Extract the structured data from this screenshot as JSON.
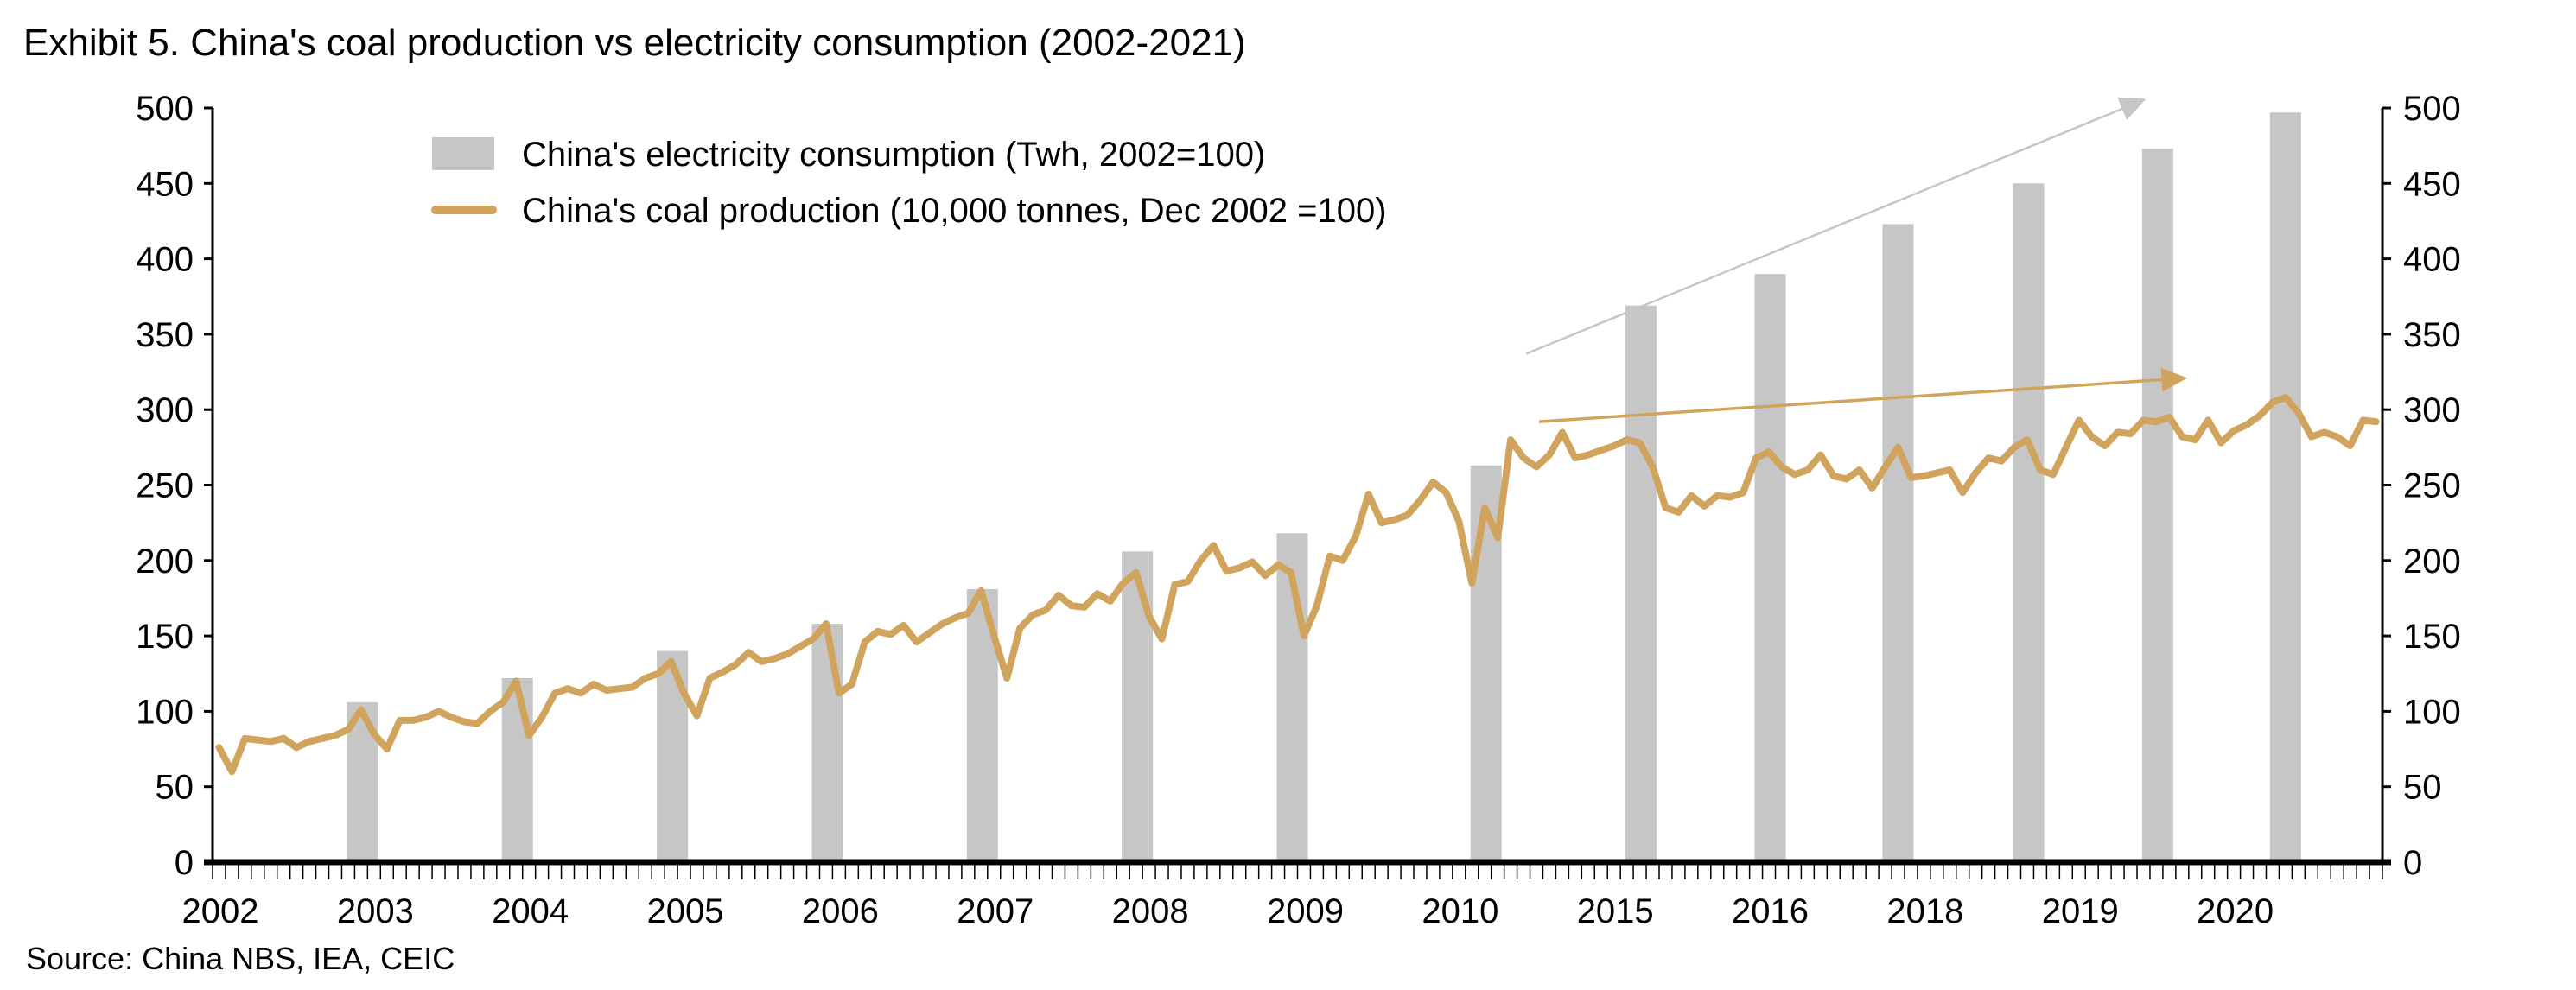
{
  "chart_data": {
    "type": "bar+line",
    "title": "Exhibit 5. China's coal production vs electricity consumption (2002-2021)",
    "source": "Source: China NBS, IEA, CEIC",
    "xlabel": "",
    "ylabel": "",
    "ylim": [
      0,
      500
    ],
    "y_ticks": [
      0,
      50,
      100,
      150,
      200,
      250,
      300,
      350,
      400,
      450,
      500
    ],
    "y2lim": [
      0,
      500
    ],
    "y2_ticks": [
      0,
      50,
      100,
      150,
      200,
      250,
      300,
      350,
      400,
      450,
      500
    ],
    "grid": false,
    "legend_placement": "top-left",
    "x_tick_labels": [
      "2002",
      "2003",
      "2004",
      "2005",
      "2006",
      "2007",
      "2008",
      "2009",
      "2010",
      "2015",
      "2016",
      "2018",
      "2019",
      "2020"
    ],
    "months_per_label": 12,
    "total_months": 168,
    "series": [
      {
        "name": "China's electricity consumption (Twh, 2002=100)",
        "type": "bar",
        "color": "#c6c6c6",
        "month_index": [
          11.6,
          23.6,
          35.6,
          47.6,
          59.6,
          71.6,
          83.6,
          98.6,
          110.6,
          120.6,
          130.5,
          140.6,
          150.6,
          160.5
        ],
        "values": [
          106,
          122,
          140,
          158,
          181,
          206,
          218,
          263,
          369,
          390,
          423,
          450,
          473,
          497
        ]
      },
      {
        "name": "China's coal production (10,000 tonnes, Dec 2002 =100)",
        "type": "line",
        "color": "#d1a45d",
        "values": [
          76,
          60,
          82,
          81,
          80,
          82,
          76,
          80,
          82,
          84,
          88,
          101,
          85,
          75,
          94,
          94,
          96,
          100,
          96,
          93,
          92,
          100,
          106,
          120,
          84,
          96,
          112,
          115,
          112,
          118,
          114,
          115,
          116,
          122,
          125,
          133,
          112,
          97,
          122,
          126,
          131,
          139,
          133,
          135,
          138,
          143,
          148,
          158,
          112,
          118,
          146,
          153,
          151,
          157,
          146,
          152,
          158,
          162,
          165,
          180,
          150,
          122,
          155,
          164,
          167,
          177,
          170,
          169,
          178,
          173,
          185,
          192,
          163,
          148,
          184,
          186,
          200,
          210,
          193,
          195,
          199,
          190,
          197,
          192,
          150,
          170,
          203,
          200,
          216,
          244,
          225,
          227,
          230,
          240,
          252,
          245,
          226,
          185,
          235,
          215,
          280,
          268,
          262,
          270,
          285,
          268,
          270,
          273,
          276,
          280,
          278,
          262,
          235,
          232,
          243,
          236,
          243,
          242,
          245,
          268,
          272,
          262,
          257,
          260,
          270,
          256,
          254,
          260,
          248,
          262,
          275,
          255,
          256,
          258,
          260,
          245,
          258,
          268,
          266,
          275,
          280,
          260,
          257,
          275,
          293,
          282,
          276,
          285,
          284,
          293,
          292,
          295,
          282,
          280,
          293,
          278,
          286,
          290,
          296,
          305,
          308,
          298,
          282,
          285,
          282,
          276,
          293,
          292
        ]
      }
    ],
    "annotations": [
      {
        "type": "arrow",
        "color": "#c6c6c6",
        "from": [
          101.7,
          337
        ],
        "to": [
          149.7,
          506
        ]
      },
      {
        "type": "arrow",
        "color": "#d1a45d",
        "from": [
          102.7,
          292
        ],
        "to": [
          152.9,
          321
        ]
      }
    ]
  }
}
